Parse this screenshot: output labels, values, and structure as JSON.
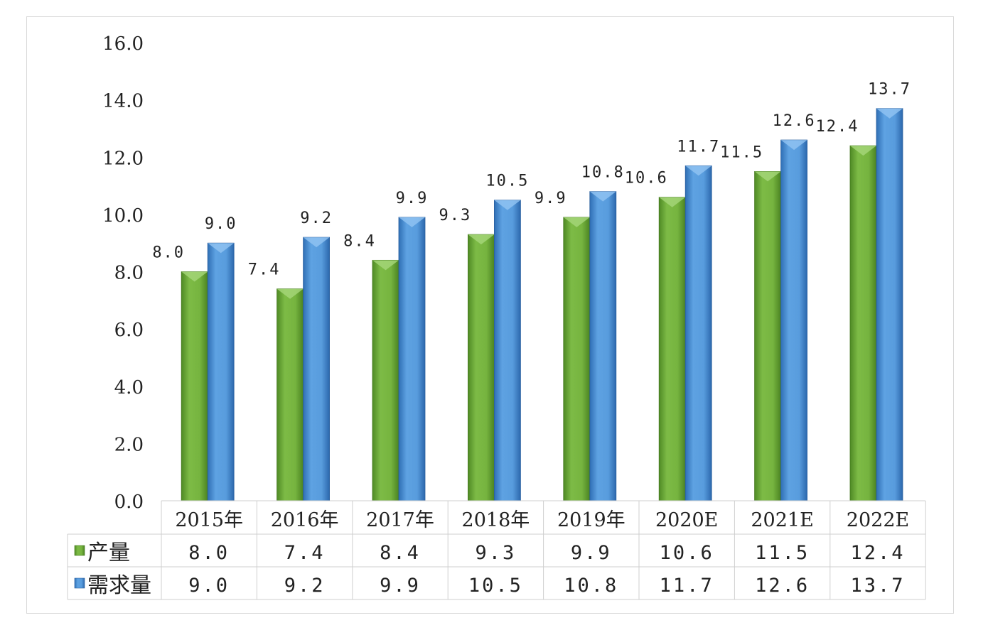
{
  "chart_data": {
    "type": "bar",
    "categories": [
      "2015年",
      "2016年",
      "2017年",
      "2018年",
      "2019年",
      "2020E",
      "2021E",
      "2022E"
    ],
    "series": [
      {
        "name": "产量",
        "values": [
          8.0,
          7.4,
          8.4,
          9.3,
          9.9,
          10.6,
          11.5,
          12.4
        ],
        "color": "#6fae3a"
      },
      {
        "name": "需求量",
        "values": [
          9.0,
          9.2,
          9.9,
          10.5,
          10.8,
          11.7,
          12.6,
          13.7
        ],
        "color": "#4f93d8"
      }
    ],
    "yticks": [
      "0.0",
      "2.0",
      "4.0",
      "6.0",
      "8.0",
      "10.0",
      "12.0",
      "14.0",
      "16.0"
    ],
    "ylim": [
      0,
      16
    ],
    "grid": false,
    "data_labels": true,
    "legend": "data-table",
    "data_table": true
  }
}
